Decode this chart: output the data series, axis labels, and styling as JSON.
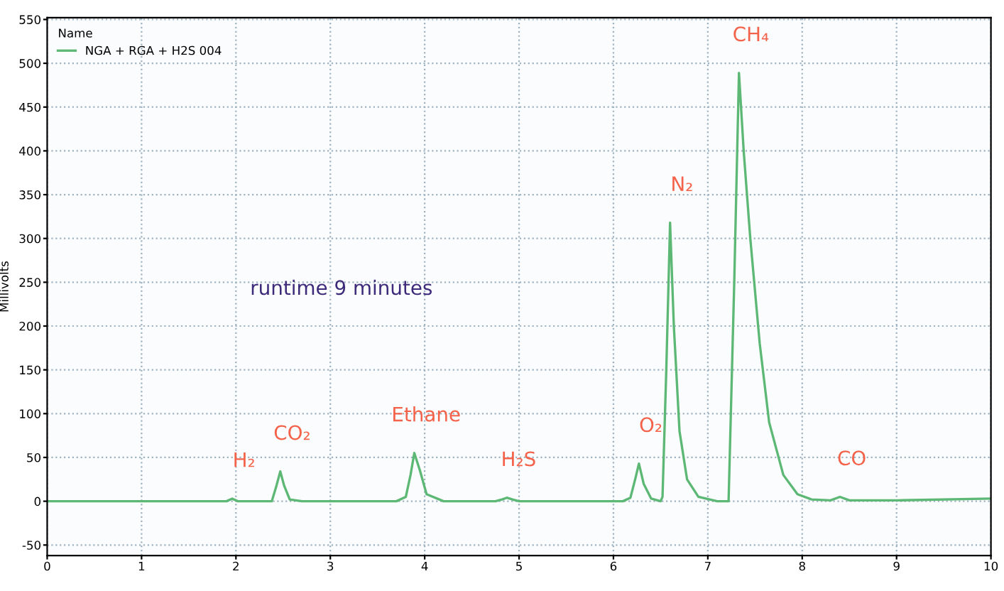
{
  "chart_data": {
    "type": "line",
    "ylabel": "Millivolts",
    "legend_title": "Name",
    "xlim": [
      0,
      10
    ],
    "xticks": [
      0,
      1,
      2,
      3,
      4,
      5,
      6,
      7,
      8,
      9,
      10
    ],
    "ylim": [
      -62,
      552
    ],
    "yticks": [
      -50,
      0,
      50,
      100,
      150,
      200,
      250,
      300,
      350,
      400,
      450,
      500,
      550
    ],
    "grid": true,
    "legend": "top left",
    "marker": "none",
    "line_style": "solid",
    "series": [
      {
        "name": "NGA + RGA + H2S 004",
        "color": "#5cb874",
        "x": [
          0,
          1.5,
          1.9,
          1.96,
          2.02,
          2.1,
          2.38,
          2.43,
          2.47,
          2.51,
          2.57,
          2.7,
          3.7,
          3.8,
          3.85,
          3.89,
          3.95,
          4.02,
          4.2,
          4.75,
          4.82,
          4.87,
          4.93,
          5.0,
          6.1,
          6.18,
          6.23,
          6.27,
          6.32,
          6.4,
          6.5,
          6.52,
          6.56,
          6.6,
          6.64,
          6.7,
          6.78,
          6.9,
          7.1,
          7.22,
          7.28,
          7.33,
          7.38,
          7.45,
          7.55,
          7.65,
          7.8,
          7.95,
          8.1,
          8.3,
          8.4,
          8.5,
          9.0,
          10.0
        ],
        "values": [
          0,
          0,
          0,
          3,
          0,
          0,
          0,
          18,
          34,
          18,
          2,
          0,
          0,
          5,
          30,
          55,
          35,
          8,
          0,
          0,
          2,
          4,
          2,
          0,
          0,
          4,
          25,
          43,
          20,
          3,
          0,
          5,
          150,
          318,
          200,
          80,
          25,
          5,
          0,
          0,
          250,
          489,
          400,
          300,
          180,
          90,
          30,
          8,
          2,
          1,
          5,
          1,
          1,
          3
        ]
      }
    ],
    "annotations": [
      {
        "text": "H₂",
        "x": 1.96,
        "y": 3
      },
      {
        "text": "CO₂",
        "x": 2.47,
        "y": 34
      },
      {
        "text": "Ethane",
        "x": 3.89,
        "y": 55
      },
      {
        "text": "H₂S",
        "x": 4.87,
        "y": 4
      },
      {
        "text": "O₂",
        "x": 6.27,
        "y": 43
      },
      {
        "text": "N₂",
        "x": 6.6,
        "y": 318
      },
      {
        "text": "CH₄",
        "x": 7.33,
        "y": 489
      },
      {
        "text": "CO",
        "x": 8.4,
        "y": 5
      },
      "runtime 9 minutes"
    ]
  }
}
